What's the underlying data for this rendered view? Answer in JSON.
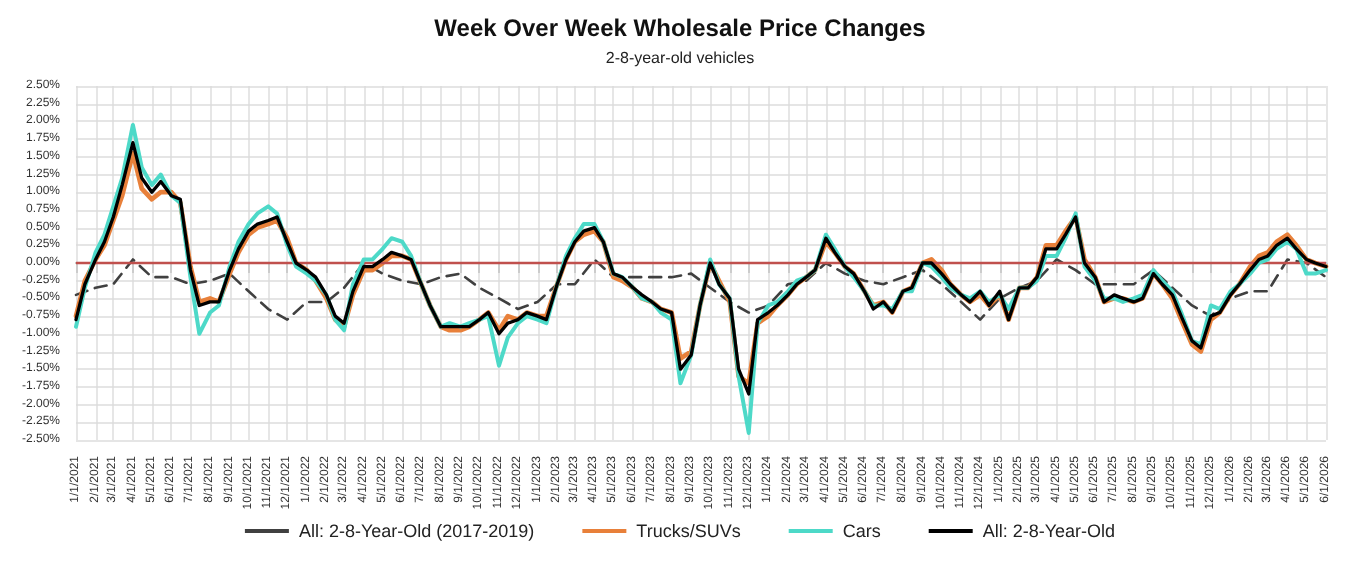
{
  "chart_data": {
    "type": "line",
    "title": "Week Over Week Wholesale Price Changes",
    "subtitle": "2-8-year-old vehicles",
    "x": [
      "2021-01-01",
      "2021-01-15",
      "2021-02-01",
      "2021-02-15",
      "2021-03-01",
      "2021-03-15",
      "2021-04-01",
      "2021-04-15",
      "2021-05-01",
      "2021-05-15",
      "2021-06-01",
      "2021-06-15",
      "2021-07-01",
      "2021-07-15",
      "2021-08-01",
      "2021-08-15",
      "2021-09-01",
      "2021-09-15",
      "2021-10-01",
      "2021-10-15",
      "2021-11-01",
      "2021-11-15",
      "2021-12-01",
      "2021-12-15",
      "2022-01-01",
      "2022-01-15",
      "2022-02-01",
      "2022-02-15",
      "2022-03-01",
      "2022-03-15",
      "2022-04-01",
      "2022-04-15",
      "2022-05-01",
      "2022-05-15",
      "2022-06-01",
      "2022-06-15",
      "2022-07-01",
      "2022-07-15",
      "2022-08-01",
      "2022-08-15",
      "2022-09-01",
      "2022-09-15",
      "2022-10-01",
      "2022-10-15",
      "2022-11-01",
      "2022-11-15",
      "2022-12-01",
      "2022-12-15",
      "2023-01-01",
      "2023-01-15",
      "2023-02-01",
      "2023-02-15",
      "2023-03-01",
      "2023-03-15",
      "2023-04-01",
      "2023-04-15",
      "2023-05-01",
      "2023-05-15",
      "2023-06-01",
      "2023-06-15",
      "2023-07-01",
      "2023-07-15",
      "2023-08-01",
      "2023-08-15",
      "2023-09-01",
      "2023-09-15",
      "2023-10-01",
      "2023-10-15",
      "2023-11-01",
      "2023-11-15",
      "2023-12-01",
      "2023-12-15",
      "2024-01-01",
      "2024-01-15",
      "2024-02-01",
      "2024-02-15",
      "2024-03-01",
      "2024-03-15",
      "2024-04-01",
      "2024-04-15",
      "2024-05-01",
      "2024-05-15",
      "2024-06-01",
      "2024-06-15",
      "2024-07-01",
      "2024-07-15",
      "2024-08-01",
      "2024-08-15",
      "2024-09-01",
      "2024-09-15",
      "2024-10-01",
      "2024-10-15",
      "2024-11-01",
      "2024-11-15",
      "2024-12-01",
      "2024-12-15",
      "2025-01-01",
      "2025-01-15",
      "2025-02-01",
      "2025-02-15",
      "2025-03-01",
      "2025-03-15",
      "2025-04-01",
      "2025-04-15",
      "2025-05-01",
      "2025-05-15",
      "2025-06-01",
      "2025-06-15",
      "2025-07-01",
      "2025-07-15",
      "2025-08-01",
      "2025-08-15",
      "2025-09-01",
      "2025-09-15",
      "2025-10-01",
      "2025-10-15",
      "2025-11-01",
      "2025-11-15",
      "2025-12-01",
      "2025-12-15",
      "2026-01-01",
      "2026-01-15",
      "2026-02-01",
      "2026-02-15",
      "2026-03-01",
      "2026-03-15",
      "2026-04-01",
      "2026-04-15",
      "2026-05-01",
      "2026-05-15",
      "2026-06-01"
    ],
    "series": [
      {
        "name": "All: 2-8-Year-Old (2017-2019)",
        "color": "#404040",
        "line_style": "dashed",
        "x": [
          "2021-01-01",
          "2021-02-01",
          "2021-03-01",
          "2021-04-01",
          "2021-05-01",
          "2021-06-01",
          "2021-07-01",
          "2021-08-01",
          "2021-09-01",
          "2021-10-01",
          "2021-11-01",
          "2021-12-01",
          "2022-01-01",
          "2022-02-01",
          "2022-03-01",
          "2022-04-01",
          "2022-05-01",
          "2022-06-01",
          "2022-07-01",
          "2022-08-01",
          "2022-09-01",
          "2022-10-01",
          "2022-11-01",
          "2022-12-01",
          "2023-01-01",
          "2023-02-01",
          "2023-03-01",
          "2023-04-01",
          "2023-05-01",
          "2023-06-01",
          "2023-07-01",
          "2023-08-01",
          "2023-09-01",
          "2023-10-01",
          "2023-11-01",
          "2023-12-01",
          "2024-01-01",
          "2024-02-01",
          "2024-03-01",
          "2024-04-01",
          "2024-05-01",
          "2024-06-01",
          "2024-07-01",
          "2024-08-01",
          "2024-09-01",
          "2024-10-01",
          "2024-11-01",
          "2024-12-01",
          "2025-01-01",
          "2025-02-01",
          "2025-03-01",
          "2025-04-01",
          "2025-05-01",
          "2025-06-01",
          "2025-07-01",
          "2025-08-01",
          "2025-09-01",
          "2025-10-01",
          "2025-11-01",
          "2025-12-01",
          "2026-01-01",
          "2026-02-01",
          "2026-03-01",
          "2026-04-01",
          "2026-05-01",
          "2026-06-01"
        ],
        "values": [
          -0.45,
          -0.35,
          -0.3,
          0.05,
          -0.2,
          -0.2,
          -0.3,
          -0.25,
          -0.15,
          -0.4,
          -0.65,
          -0.8,
          -0.55,
          -0.55,
          -0.35,
          0.0,
          -0.15,
          -0.25,
          -0.3,
          -0.2,
          -0.15,
          -0.35,
          -0.5,
          -0.65,
          -0.55,
          -0.3,
          -0.3,
          0.05,
          -0.2,
          -0.2,
          -0.2,
          -0.2,
          -0.15,
          -0.35,
          -0.55,
          -0.7,
          -0.6,
          -0.3,
          -0.25,
          0.0,
          -0.15,
          -0.25,
          -0.3,
          -0.2,
          -0.1,
          -0.3,
          -0.55,
          -0.8,
          -0.5,
          -0.35,
          -0.25,
          0.05,
          -0.1,
          -0.3,
          -0.3,
          -0.3,
          -0.1,
          -0.35,
          -0.6,
          -0.75,
          -0.5,
          -0.4,
          -0.4,
          0.05,
          0.0,
          -0.2
        ]
      },
      {
        "name": "Trucks/SUVs",
        "color": "#e8803a",
        "values": [
          -0.75,
          -0.25,
          0.05,
          0.25,
          0.6,
          0.95,
          1.55,
          1.05,
          0.9,
          1.0,
          1.0,
          0.85,
          -0.05,
          -0.55,
          -0.5,
          -0.55,
          -0.15,
          0.15,
          0.4,
          0.5,
          0.55,
          0.6,
          0.35,
          0.0,
          -0.1,
          -0.25,
          -0.5,
          -0.8,
          -0.9,
          -0.45,
          -0.1,
          -0.1,
          0.0,
          0.1,
          0.1,
          0.05,
          -0.3,
          -0.6,
          -0.9,
          -0.95,
          -0.95,
          -0.9,
          -0.8,
          -0.7,
          -0.95,
          -0.75,
          -0.8,
          -0.7,
          -0.75,
          -0.75,
          -0.3,
          0.05,
          0.3,
          0.4,
          0.45,
          0.3,
          -0.2,
          -0.25,
          -0.35,
          -0.5,
          -0.55,
          -0.65,
          -0.7,
          -1.35,
          -1.25,
          -0.6,
          0.0,
          -0.25,
          -0.55,
          -1.6,
          -1.7,
          -0.85,
          -0.75,
          -0.6,
          -0.45,
          -0.3,
          -0.2,
          -0.1,
          0.3,
          0.15,
          -0.05,
          -0.15,
          -0.4,
          -0.6,
          -0.55,
          -0.7,
          -0.4,
          -0.35,
          0.0,
          0.05,
          -0.1,
          -0.3,
          -0.45,
          -0.55,
          -0.45,
          -0.6,
          -0.45,
          -0.8,
          -0.35,
          -0.35,
          -0.2,
          0.25,
          0.25,
          0.45,
          0.65,
          0.05,
          -0.2,
          -0.55,
          -0.5,
          -0.5,
          -0.55,
          -0.5,
          -0.15,
          -0.3,
          -0.5,
          -0.8,
          -1.15,
          -1.25,
          -0.8,
          -0.7,
          -0.45,
          -0.3,
          -0.05,
          0.1,
          0.15,
          0.3,
          0.4,
          0.25,
          0.05,
          0.0,
          -0.05
        ]
      },
      {
        "name": "Cars",
        "color": "#4dd9c8",
        "values": [
          -0.9,
          -0.35,
          0.15,
          0.4,
          0.8,
          1.2,
          1.95,
          1.35,
          1.1,
          1.25,
          0.95,
          0.85,
          -0.2,
          -1.0,
          -0.7,
          -0.6,
          -0.05,
          0.3,
          0.55,
          0.7,
          0.8,
          0.7,
          0.25,
          -0.05,
          -0.15,
          -0.25,
          -0.45,
          -0.8,
          -0.95,
          -0.3,
          0.05,
          0.05,
          0.2,
          0.35,
          0.3,
          0.1,
          -0.3,
          -0.6,
          -0.9,
          -0.85,
          -0.9,
          -0.85,
          -0.8,
          -0.75,
          -1.45,
          -1.05,
          -0.85,
          -0.75,
          -0.8,
          -0.85,
          -0.3,
          0.1,
          0.35,
          0.55,
          0.55,
          0.3,
          -0.15,
          -0.2,
          -0.35,
          -0.5,
          -0.55,
          -0.7,
          -0.8,
          -1.7,
          -1.3,
          -0.6,
          0.05,
          -0.3,
          -0.5,
          -1.6,
          -2.4,
          -0.85,
          -0.6,
          -0.55,
          -0.4,
          -0.25,
          -0.2,
          -0.1,
          0.4,
          0.2,
          -0.05,
          -0.2,
          -0.4,
          -0.6,
          -0.6,
          -0.65,
          -0.4,
          -0.4,
          0.0,
          -0.05,
          -0.2,
          -0.35,
          -0.45,
          -0.5,
          -0.4,
          -0.55,
          -0.45,
          -0.65,
          -0.35,
          -0.35,
          -0.25,
          0.1,
          0.1,
          0.35,
          0.7,
          -0.05,
          -0.25,
          -0.5,
          -0.5,
          -0.55,
          -0.5,
          -0.45,
          -0.1,
          -0.25,
          -0.4,
          -0.7,
          -1.1,
          -1.15,
          -0.6,
          -0.65,
          -0.4,
          -0.3,
          -0.15,
          0.0,
          0.05,
          0.2,
          0.3,
          0.2,
          -0.15,
          -0.15,
          -0.1
        ]
      },
      {
        "name": "All: 2-8-Year-Old",
        "color": "#000000",
        "values": [
          -0.8,
          -0.3,
          0.05,
          0.3,
          0.65,
          1.1,
          1.7,
          1.2,
          1.0,
          1.15,
          0.95,
          0.9,
          -0.1,
          -0.6,
          -0.55,
          -0.55,
          -0.1,
          0.2,
          0.45,
          0.55,
          0.6,
          0.65,
          0.3,
          0.0,
          -0.1,
          -0.2,
          -0.45,
          -0.75,
          -0.85,
          -0.4,
          -0.05,
          -0.05,
          0.05,
          0.15,
          0.1,
          0.05,
          -0.3,
          -0.6,
          -0.9,
          -0.9,
          -0.9,
          -0.9,
          -0.8,
          -0.7,
          -1.0,
          -0.85,
          -0.8,
          -0.7,
          -0.75,
          -0.8,
          -0.3,
          0.05,
          0.3,
          0.45,
          0.5,
          0.3,
          -0.15,
          -0.2,
          -0.35,
          -0.45,
          -0.55,
          -0.65,
          -0.7,
          -1.5,
          -1.3,
          -0.6,
          0.0,
          -0.3,
          -0.5,
          -1.5,
          -1.85,
          -0.8,
          -0.7,
          -0.6,
          -0.45,
          -0.3,
          -0.2,
          -0.1,
          0.35,
          0.15,
          -0.05,
          -0.15,
          -0.4,
          -0.65,
          -0.55,
          -0.7,
          -0.4,
          -0.35,
          0.0,
          0.0,
          -0.15,
          -0.3,
          -0.45,
          -0.55,
          -0.4,
          -0.6,
          -0.4,
          -0.8,
          -0.35,
          -0.35,
          -0.2,
          0.2,
          0.2,
          0.4,
          0.65,
          0.0,
          -0.2,
          -0.55,
          -0.45,
          -0.5,
          -0.55,
          -0.5,
          -0.15,
          -0.3,
          -0.45,
          -0.75,
          -1.1,
          -1.2,
          -0.75,
          -0.7,
          -0.45,
          -0.3,
          -0.1,
          0.05,
          0.1,
          0.25,
          0.35,
          0.2,
          0.05,
          0.0,
          -0.05
        ]
      }
    ],
    "xlim": [
      "2021-01-01",
      "2026-06-01"
    ],
    "xticks": [
      {
        "value": "2021-01-01",
        "label": "1/1/2021"
      },
      {
        "value": "2021-02-01",
        "label": "2/1/2021"
      },
      {
        "value": "2021-03-01",
        "label": "3/1/2021"
      },
      {
        "value": "2021-04-01",
        "label": "4/1/2021"
      },
      {
        "value": "2021-05-01",
        "label": "5/1/2021"
      },
      {
        "value": "2021-06-01",
        "label": "6/1/2021"
      },
      {
        "value": "2021-07-01",
        "label": "7/1/2021"
      },
      {
        "value": "2021-08-01",
        "label": "8/1/2021"
      },
      {
        "value": "2021-09-01",
        "label": "9/1/2021"
      },
      {
        "value": "2021-10-01",
        "label": "10/1/2021"
      },
      {
        "value": "2021-11-01",
        "label": "11/1/2021"
      },
      {
        "value": "2021-12-01",
        "label": "12/1/2021"
      },
      {
        "value": "2022-01-01",
        "label": "1/1/2022"
      },
      {
        "value": "2022-02-01",
        "label": "2/1/2022"
      },
      {
        "value": "2022-03-01",
        "label": "3/1/2022"
      },
      {
        "value": "2022-04-01",
        "label": "4/1/2022"
      },
      {
        "value": "2022-05-01",
        "label": "5/1/2022"
      },
      {
        "value": "2022-06-01",
        "label": "6/1/2022"
      },
      {
        "value": "2022-07-01",
        "label": "7/1/2022"
      },
      {
        "value": "2022-08-01",
        "label": "8/1/2022"
      },
      {
        "value": "2022-09-01",
        "label": "9/1/2022"
      },
      {
        "value": "2022-10-01",
        "label": "10/1/2022"
      },
      {
        "value": "2022-11-01",
        "label": "11/1/2022"
      },
      {
        "value": "2022-12-01",
        "label": "12/1/2022"
      },
      {
        "value": "2023-01-01",
        "label": "1/1/2023"
      },
      {
        "value": "2023-02-01",
        "label": "2/1/2023"
      },
      {
        "value": "2023-03-01",
        "label": "3/1/2023"
      },
      {
        "value": "2023-04-01",
        "label": "4/1/2023"
      },
      {
        "value": "2023-05-01",
        "label": "5/1/2023"
      },
      {
        "value": "2023-06-01",
        "label": "6/1/2023"
      },
      {
        "value": "2023-07-01",
        "label": "7/1/2023"
      },
      {
        "value": "2023-08-01",
        "label": "8/1/2023"
      },
      {
        "value": "2023-09-01",
        "label": "9/1/2023"
      },
      {
        "value": "2023-10-01",
        "label": "10/1/2023"
      },
      {
        "value": "2023-11-01",
        "label": "11/1/2023"
      },
      {
        "value": "2023-12-01",
        "label": "12/1/2023"
      },
      {
        "value": "2024-01-01",
        "label": "1/1/2024"
      },
      {
        "value": "2024-02-01",
        "label": "2/1/2024"
      },
      {
        "value": "2024-03-01",
        "label": "3/1/2024"
      },
      {
        "value": "2024-04-01",
        "label": "4/1/2024"
      },
      {
        "value": "2024-05-01",
        "label": "5/1/2024"
      },
      {
        "value": "2024-06-01",
        "label": "6/1/2024"
      },
      {
        "value": "2024-07-01",
        "label": "7/1/2024"
      },
      {
        "value": "2024-08-01",
        "label": "8/1/2024"
      },
      {
        "value": "2024-09-01",
        "label": "9/1/2024"
      },
      {
        "value": "2024-10-01",
        "label": "10/1/2024"
      },
      {
        "value": "2024-11-01",
        "label": "11/1/2024"
      },
      {
        "value": "2024-12-01",
        "label": "12/1/2024"
      },
      {
        "value": "2025-01-01",
        "label": "1/1/2025"
      },
      {
        "value": "2025-02-01",
        "label": "2/1/2025"
      },
      {
        "value": "2025-03-01",
        "label": "3/1/2025"
      },
      {
        "value": "2025-04-01",
        "label": "4/1/2025"
      },
      {
        "value": "2025-05-01",
        "label": "5/1/2025"
      },
      {
        "value": "2025-06-01",
        "label": "6/1/2025"
      },
      {
        "value": "2025-07-01",
        "label": "7/1/2025"
      },
      {
        "value": "2025-08-01",
        "label": "8/1/2025"
      },
      {
        "value": "2025-09-01",
        "label": "9/1/2025"
      },
      {
        "value": "2025-10-01",
        "label": "10/1/2025"
      },
      {
        "value": "2025-11-01",
        "label": "11/1/2025"
      },
      {
        "value": "2025-12-01",
        "label": "12/1/2025"
      },
      {
        "value": "2026-01-01",
        "label": "1/1/2026"
      },
      {
        "value": "2026-02-01",
        "label": "2/1/2026"
      },
      {
        "value": "2026-03-01",
        "label": "3/1/2026"
      },
      {
        "value": "2026-04-01",
        "label": "4/1/2026"
      },
      {
        "value": "2026-05-01",
        "label": "5/1/2026"
      },
      {
        "value": "2026-06-01",
        "label": "6/1/2026"
      }
    ],
    "ylim": [
      -2.5,
      2.5
    ],
    "yticks": [
      {
        "value": -2.5,
        "label": "-2.50%"
      },
      {
        "value": -2.25,
        "label": "-2.25%"
      },
      {
        "value": -2,
        "label": "-2.00%"
      },
      {
        "value": -1.75,
        "label": "-1.75%"
      },
      {
        "value": -1.5,
        "label": "-1.50%"
      },
      {
        "value": -1.25,
        "label": "-1.25%"
      },
      {
        "value": -1,
        "label": "-1.00%"
      },
      {
        "value": -0.75,
        "label": "-0.75%"
      },
      {
        "value": -0.5,
        "label": "-0.50%"
      },
      {
        "value": -0.25,
        "label": "-0.25%"
      },
      {
        "value": 0,
        "label": "0.00%"
      },
      {
        "value": 0.25,
        "label": "0.25%"
      },
      {
        "value": 0.5,
        "label": "0.50%"
      },
      {
        "value": 0.75,
        "label": "0.75%"
      },
      {
        "value": 1,
        "label": "1.00%"
      },
      {
        "value": 1.25,
        "label": "1.25%"
      },
      {
        "value": 1.5,
        "label": "1.50%"
      },
      {
        "value": 1.75,
        "label": "1.75%"
      },
      {
        "value": 2,
        "label": "2.00%"
      },
      {
        "value": 2.25,
        "label": "2.25%"
      },
      {
        "value": 2.5,
        "label": "2.50%"
      }
    ],
    "ref_lines": [
      {
        "axis": "y",
        "value": 0,
        "color": "#c0504d"
      }
    ],
    "grid": true,
    "legend": "bottom",
    "marker": "none"
  }
}
